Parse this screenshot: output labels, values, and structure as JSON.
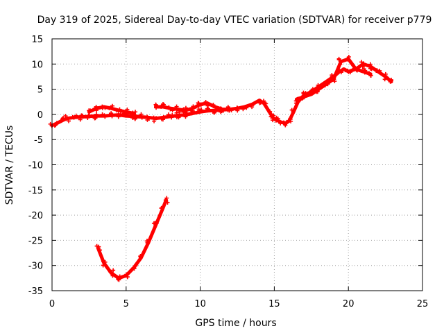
{
  "chart_data": {
    "type": "scatter",
    "title": "Day 319 of 2025, Sidereal Day-to-day VTEC variation (SDTVAR) for receiver p779",
    "xlabel": "GPS time / hours",
    "ylabel": "SDTVAR / TECUs",
    "xlim": [
      0,
      25
    ],
    "ylim": [
      -35,
      15
    ],
    "xticks": [
      0,
      5,
      10,
      15,
      20,
      25
    ],
    "yticks": [
      -35,
      -30,
      -25,
      -20,
      -15,
      -10,
      -5,
      0,
      5,
      10,
      15
    ],
    "grid": true,
    "legend": "none",
    "series": [
      {
        "name": "main track",
        "color": "#ff0000",
        "x": [
          0.0,
          0.3,
          0.7,
          1.0,
          1.5,
          2.0,
          2.5,
          3.0,
          3.5,
          4.0,
          4.5,
          5.0,
          5.5,
          6.0,
          6.5,
          7.0,
          7.5,
          8.0,
          8.5,
          9.0,
          9.5,
          10.0,
          10.5,
          11.0,
          11.5,
          12.0,
          12.5,
          13.0,
          13.5,
          14.0,
          14.3,
          14.6,
          14.9,
          15.2,
          15.5,
          15.8,
          16.0,
          16.3,
          16.6,
          17.0,
          17.5,
          18.0,
          18.5,
          19.0,
          19.4,
          19.7,
          20.0,
          20.5,
          21.0,
          21.5,
          22.0,
          22.5,
          22.9
        ],
        "y": [
          -2.2,
          -1.8,
          -1.2,
          -0.8,
          -0.6,
          -0.5,
          -0.4,
          -0.3,
          -0.3,
          -0.2,
          -0.1,
          -0.3,
          -0.4,
          -0.5,
          -0.6,
          -0.8,
          -0.6,
          -0.4,
          -0.2,
          -0.1,
          0.2,
          0.5,
          0.7,
          0.8,
          0.9,
          1.0,
          1.2,
          1.5,
          2.0,
          2.8,
          2.2,
          0.8,
          -0.6,
          -1.2,
          -1.6,
          -1.7,
          -1.3,
          0.5,
          2.5,
          3.8,
          4.5,
          5.5,
          6.5,
          7.5,
          8.5,
          9.0,
          8.5,
          9.0,
          10.0,
          9.5,
          8.5,
          7.5,
          6.5
        ]
      },
      {
        "name": "upper branch 5.5-9.5 h",
        "color": "#ff0000",
        "x": [
          7.0,
          7.5,
          8.0,
          8.5,
          9.0,
          9.5,
          10.0,
          10.5,
          11.0,
          11.5,
          12.0
        ],
        "y": [
          1.5,
          1.5,
          1.2,
          1.0,
          0.8,
          1.2,
          2.0,
          2.2,
          1.5,
          1.0,
          1.0
        ]
      },
      {
        "name": "upper branch 2.5-5 h",
        "color": "#ff0000",
        "x": [
          2.5,
          3.0,
          3.5,
          4.0,
          4.5,
          5.0,
          5.5
        ],
        "y": [
          0.5,
          1.2,
          1.5,
          1.2,
          0.8,
          0.5,
          0.2
        ]
      },
      {
        "name": "secondary band 17-20 h",
        "color": "#ff0000",
        "x": [
          16.5,
          17.0,
          17.5,
          18.0,
          18.5,
          19.0,
          19.5,
          20.0,
          20.5,
          21.0,
          21.5
        ],
        "y": [
          3.0,
          3.5,
          4.0,
          5.0,
          6.0,
          7.0,
          10.5,
          11.0,
          9.0,
          8.5,
          8.0
        ]
      },
      {
        "name": "low arc 3-7.7 h",
        "color": "#ff0000",
        "x": [
          3.1,
          3.5,
          4.0,
          4.5,
          5.0,
          5.5,
          6.0,
          6.5,
          7.0,
          7.5,
          7.7
        ],
        "y": [
          -26.5,
          -29.5,
          -31.5,
          -32.5,
          -32.0,
          -30.5,
          -28.5,
          -25.5,
          -22.0,
          -18.5,
          -17.0
        ]
      }
    ]
  }
}
